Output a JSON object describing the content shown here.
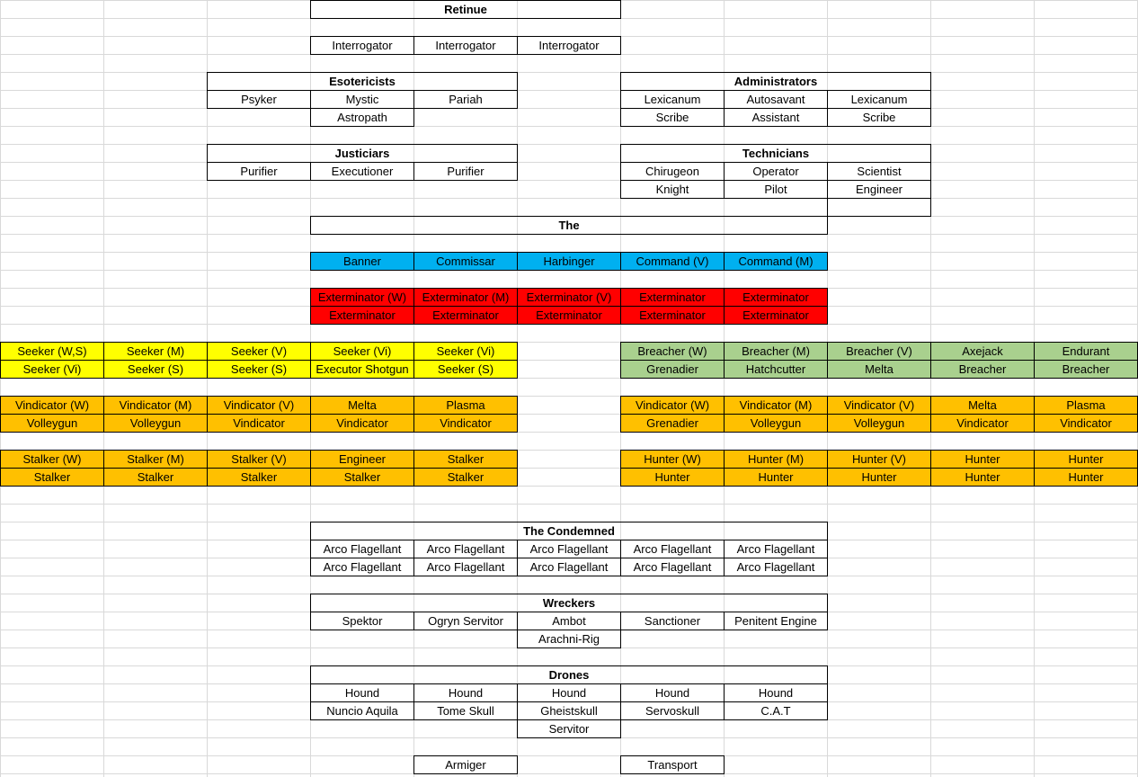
{
  "sheet": {
    "retinue": {
      "title": "Retinue",
      "rows": [
        [
          "Interrogator",
          "Interrogator",
          "Interrogator"
        ]
      ]
    },
    "esotericists": {
      "title": "Esotericists",
      "rows": [
        [
          "Psyker",
          "Mystic",
          "Pariah"
        ],
        [
          "Astropath"
        ]
      ]
    },
    "administrators": {
      "title": "Administrators",
      "rows": [
        [
          "Lexicanum",
          "Autosavant",
          "Lexicanum"
        ],
        [
          "Scribe",
          "Assistant",
          "Scribe"
        ]
      ]
    },
    "justiciars": {
      "title": "Justiciars",
      "rows": [
        [
          "Purifier",
          "Executioner",
          "Purifier"
        ]
      ]
    },
    "technicians": {
      "title": "Technicians",
      "rows": [
        [
          "Chirugeon",
          "Operator",
          "Scientist"
        ],
        [
          "Knight",
          "Pilot",
          "Engineer"
        ]
      ]
    },
    "the": {
      "title": "The",
      "rows": []
    },
    "command": {
      "rows": [
        [
          "Banner",
          "Commissar",
          "Harbinger",
          "Command (V)",
          "Command (M)"
        ]
      ],
      "color": "#00b0f0"
    },
    "exterminators": {
      "rows": [
        [
          "Exterminator (W)",
          "Exterminator (M)",
          "Exterminator (V)",
          "Exterminator",
          "Exterminator"
        ],
        [
          "Exterminator",
          "Exterminator",
          "Exterminator",
          "Exterminator",
          "Exterminator"
        ]
      ],
      "color": "#ff0000"
    },
    "seekers": {
      "rows": [
        [
          "Seeker (W,S)",
          "Seeker (M)",
          "Seeker (V)",
          "Seeker (Vi)",
          "Seeker (Vi)"
        ],
        [
          "Seeker (Vi)",
          "Seeker (S)",
          "Seeker (S)",
          "Executor Shotgun",
          "Seeker (S)"
        ]
      ],
      "color": "#ffff00"
    },
    "breachers": {
      "rows": [
        [
          "Breacher (W)",
          "Breacher (M)",
          "Breacher (V)",
          "Axejack",
          "Endurant"
        ],
        [
          "Grenadier",
          "Hatchcutter",
          "Melta",
          "Breacher",
          "Breacher"
        ]
      ],
      "color": "#a9d08e"
    },
    "vindicators_left": {
      "rows": [
        [
          "Vindicator (W)",
          "Vindicator (M)",
          "Vindicator (V)",
          "Melta",
          "Plasma"
        ],
        [
          "Volleygun",
          "Volleygun",
          "Vindicator",
          "Vindicator",
          "Vindicator"
        ]
      ],
      "color": "#ffc000"
    },
    "vindicators_right": {
      "rows": [
        [
          "Vindicator (W)",
          "Vindicator (M)",
          "Vindicator (V)",
          "Melta",
          "Plasma"
        ],
        [
          "Grenadier",
          "Volleygun",
          "Volleygun",
          "Vindicator",
          "Vindicator"
        ]
      ],
      "color": "#ffc000"
    },
    "stalkers": {
      "rows": [
        [
          "Stalker (W)",
          "Stalker (M)",
          "Stalker (V)",
          "Engineer",
          "Stalker"
        ],
        [
          "Stalker",
          "Stalker",
          "Stalker",
          "Stalker",
          "Stalker"
        ]
      ],
      "color": "#ffc000"
    },
    "hunters": {
      "rows": [
        [
          "Hunter (W)",
          "Hunter (M)",
          "Hunter (V)",
          "Hunter",
          "Hunter"
        ],
        [
          "Hunter",
          "Hunter",
          "Hunter",
          "Hunter",
          "Hunter"
        ]
      ],
      "color": "#ffc000"
    },
    "condemned": {
      "title": "The Condemned",
      "rows": [
        [
          "Arco Flagellant",
          "Arco Flagellant",
          "Arco Flagellant",
          "Arco Flagellant",
          "Arco Flagellant"
        ],
        [
          "Arco Flagellant",
          "Arco Flagellant",
          "Arco Flagellant",
          "Arco Flagellant",
          "Arco Flagellant"
        ]
      ]
    },
    "wreckers": {
      "title": "Wreckers",
      "rows": [
        [
          "Spektor",
          "Ogryn Servitor",
          "Ambot",
          "Sanctioner",
          "Penitent Engine"
        ],
        [
          "Arachni-Rig"
        ]
      ]
    },
    "drones": {
      "title": "Drones",
      "rows": [
        [
          "Hound",
          "Hound",
          "Hound",
          "Hound",
          "Hound"
        ],
        [
          "Nuncio Aquila",
          "Tome Skull",
          "Gheistskull",
          "Servoskull",
          "C.A.T"
        ],
        [
          "Servitor"
        ]
      ]
    },
    "vehicles": {
      "rows": [
        [
          "Armiger"
        ],
        [
          "Transport"
        ]
      ]
    }
  }
}
